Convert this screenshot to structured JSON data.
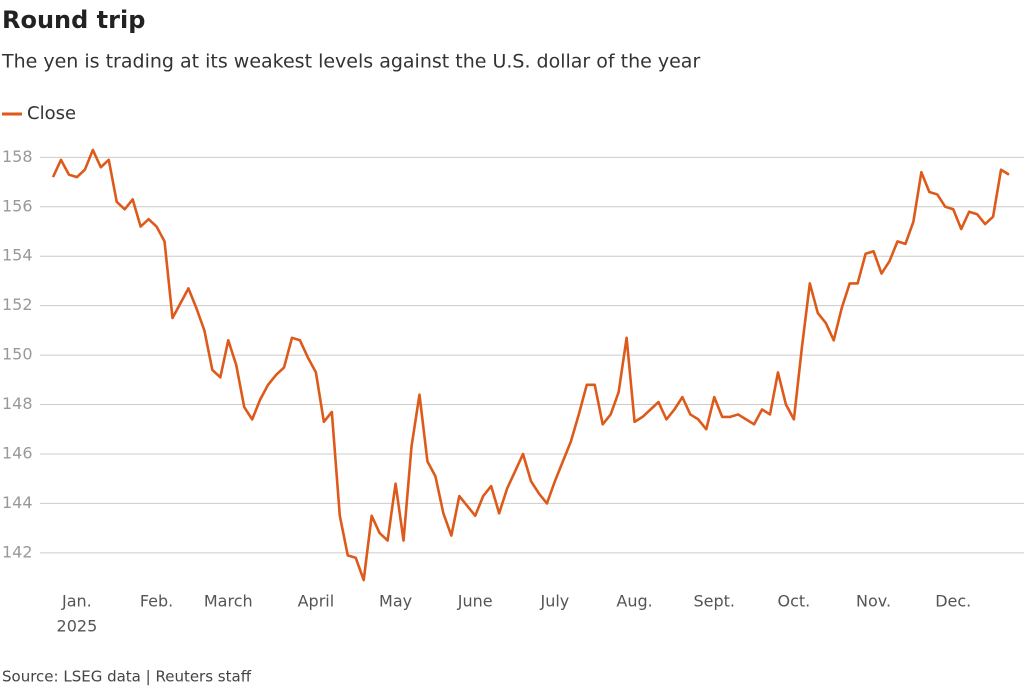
{
  "chart_data": {
    "type": "line",
    "title": "Round trip",
    "subtitle": "The yen is trading at its weakest levels against the U.S. dollar of the year",
    "source": "Source: LSEG data | Reuters staff",
    "year_label": "2025",
    "categories": [
      null,
      null,
      null,
      "Jan.",
      null,
      null,
      null,
      null,
      null,
      null,
      null,
      null,
      null,
      "Feb.",
      null,
      null,
      null,
      null,
      null,
      null,
      null,
      null,
      "March",
      null,
      null,
      null,
      null,
      null,
      null,
      null,
      null,
      null,
      null,
      "April",
      null,
      null,
      null,
      null,
      null,
      null,
      null,
      null,
      null,
      "May",
      null,
      null,
      null,
      null,
      null,
      null,
      null,
      null,
      null,
      "June",
      null,
      null,
      null,
      null,
      null,
      null,
      null,
      null,
      null,
      "July",
      null,
      null,
      null,
      null,
      null,
      null,
      null,
      null,
      null,
      "Aug.",
      null,
      null,
      null,
      null,
      null,
      null,
      null,
      null,
      null,
      "Sept.",
      null,
      null,
      null,
      null,
      null,
      null,
      null,
      null,
      null,
      "Oct.",
      null,
      null,
      null,
      null,
      null,
      null,
      null,
      null,
      null,
      "Nov.",
      null,
      null,
      null,
      null,
      null,
      null,
      null,
      null,
      null,
      "Dec.",
      null,
      null,
      null,
      null,
      null,
      null,
      null
    ],
    "series": [
      {
        "name": "Close",
        "color": "#dd5a1a",
        "values": [
          157.2,
          157.9,
          157.3,
          157.2,
          157.5,
          158.3,
          157.6,
          157.9,
          156.2,
          155.9,
          156.3,
          155.2,
          155.5,
          155.2,
          154.6,
          151.5,
          152.1,
          152.7,
          151.9,
          151.0,
          149.4,
          149.1,
          150.6,
          149.6,
          147.9,
          147.4,
          148.2,
          148.8,
          149.2,
          149.5,
          150.7,
          150.6,
          149.9,
          149.3,
          147.3,
          147.7,
          143.5,
          141.9,
          141.8,
          140.9,
          143.5,
          142.8,
          142.5,
          144.8,
          142.5,
          146.3,
          148.4,
          145.7,
          145.1,
          143.6,
          142.7,
          144.3,
          143.9,
          143.5,
          144.3,
          144.7,
          143.6,
          144.6,
          145.3,
          146.0,
          144.9,
          144.4,
          144.0,
          144.9,
          145.7,
          146.5,
          147.6,
          148.8,
          148.8,
          147.2,
          147.6,
          148.5,
          150.7,
          147.3,
          147.5,
          147.8,
          148.1,
          147.4,
          147.8,
          148.3,
          147.6,
          147.4,
          147.0,
          148.3,
          147.5,
          147.5,
          147.6,
          147.4,
          147.2,
          147.8,
          147.6,
          149.3,
          148.0,
          147.4,
          150.3,
          152.9,
          151.7,
          151.3,
          150.6,
          151.9,
          152.9,
          152.9,
          154.1,
          154.2,
          153.3,
          153.8,
          154.6,
          154.5,
          155.4,
          157.4,
          156.6,
          156.5,
          156.0,
          155.9,
          155.1,
          155.8,
          155.7,
          155.3,
          155.6,
          157.5,
          157.3
        ]
      }
    ],
    "ylim": [
      140.7,
      158.5
    ],
    "yticks": [
      142,
      144,
      146,
      148,
      150,
      152,
      154,
      156,
      158
    ],
    "grid": true
  }
}
